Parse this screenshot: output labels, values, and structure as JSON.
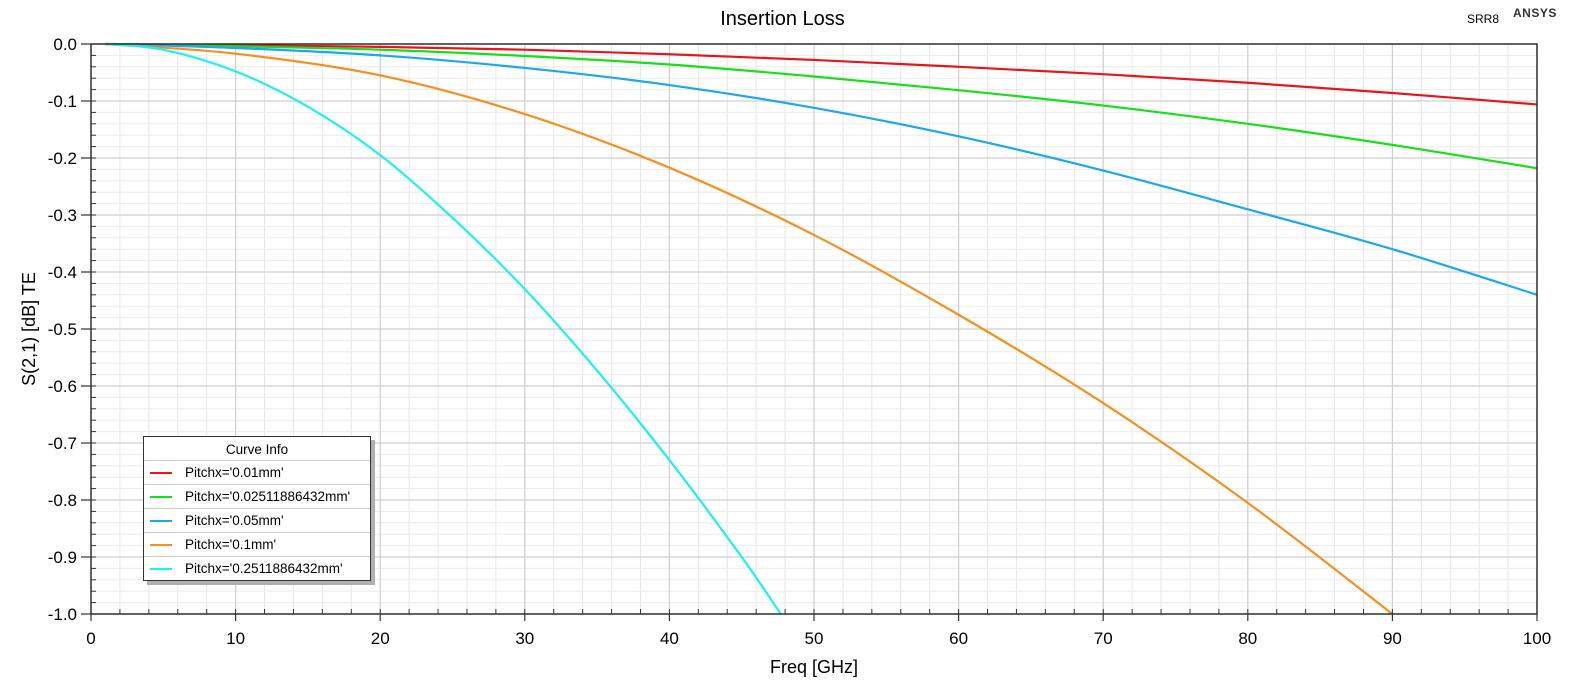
{
  "chart_data": {
    "type": "line",
    "title": "Insertion Loss",
    "xlabel": "Freq [GHz]",
    "ylabel": "S(2,1) [dB] TE",
    "xlim": [
      0,
      100
    ],
    "ylim": [
      -1.0,
      0.0
    ],
    "grid": true,
    "xticks": [
      "0",
      "10",
      "20",
      "30",
      "40",
      "50",
      "60",
      "70",
      "80",
      "90",
      "100"
    ],
    "yticks": [
      "0.0",
      "-0.1",
      "-0.2",
      "-0.3",
      "-0.4",
      "-0.5",
      "-0.6",
      "-0.7",
      "-0.8",
      "-0.9",
      "-1.0"
    ],
    "legend_title": "Curve Info",
    "legend_position": "bottom-left",
    "series": [
      {
        "name": "Pitchx='0.01mm'",
        "color": "#e8141e",
        "x": [
          1,
          10,
          20,
          30,
          40,
          50,
          60,
          70,
          80,
          90,
          100
        ],
        "y": [
          0.0,
          -0.002,
          -0.005,
          -0.01,
          -0.018,
          -0.028,
          -0.04,
          -0.053,
          -0.068,
          -0.086,
          -0.106
        ]
      },
      {
        "name": "Pitchx='0.02511886432mm'",
        "color": "#16e016",
        "x": [
          1,
          10,
          20,
          30,
          40,
          50,
          60,
          70,
          80,
          90,
          100
        ],
        "y": [
          0.0,
          -0.004,
          -0.01,
          -0.021,
          -0.036,
          -0.057,
          -0.081,
          -0.108,
          -0.14,
          -0.177,
          -0.218
        ]
      },
      {
        "name": "Pitchx='0.05mm'",
        "color": "#1aa8f0",
        "x": [
          1,
          10,
          20,
          30,
          40,
          50,
          60,
          70,
          80,
          90,
          100
        ],
        "y": [
          0.0,
          -0.007,
          -0.02,
          -0.042,
          -0.072,
          -0.112,
          -0.162,
          -0.222,
          -0.29,
          -0.36,
          -0.44
        ]
      },
      {
        "name": "Pitchx='0.1mm'",
        "color": "#f5901e",
        "x": [
          1,
          10,
          20,
          30,
          40,
          50,
          60,
          70,
          80,
          90
        ],
        "y": [
          0.0,
          -0.017,
          -0.055,
          -0.123,
          -0.217,
          -0.335,
          -0.475,
          -0.63,
          -0.805,
          -1.0
        ]
      },
      {
        "name": "Pitchx='0.2511886432mm'",
        "color": "#1ef0f0",
        "x": [
          1,
          5,
          10,
          15,
          20,
          25,
          30,
          35,
          40,
          45,
          47.7
        ],
        "y": [
          0.0,
          -0.01,
          -0.048,
          -0.11,
          -0.195,
          -0.305,
          -0.43,
          -0.573,
          -0.73,
          -0.9,
          -1.0
        ]
      }
    ]
  },
  "header": {
    "design_name": "SRR8",
    "brand": "ANSYS"
  }
}
